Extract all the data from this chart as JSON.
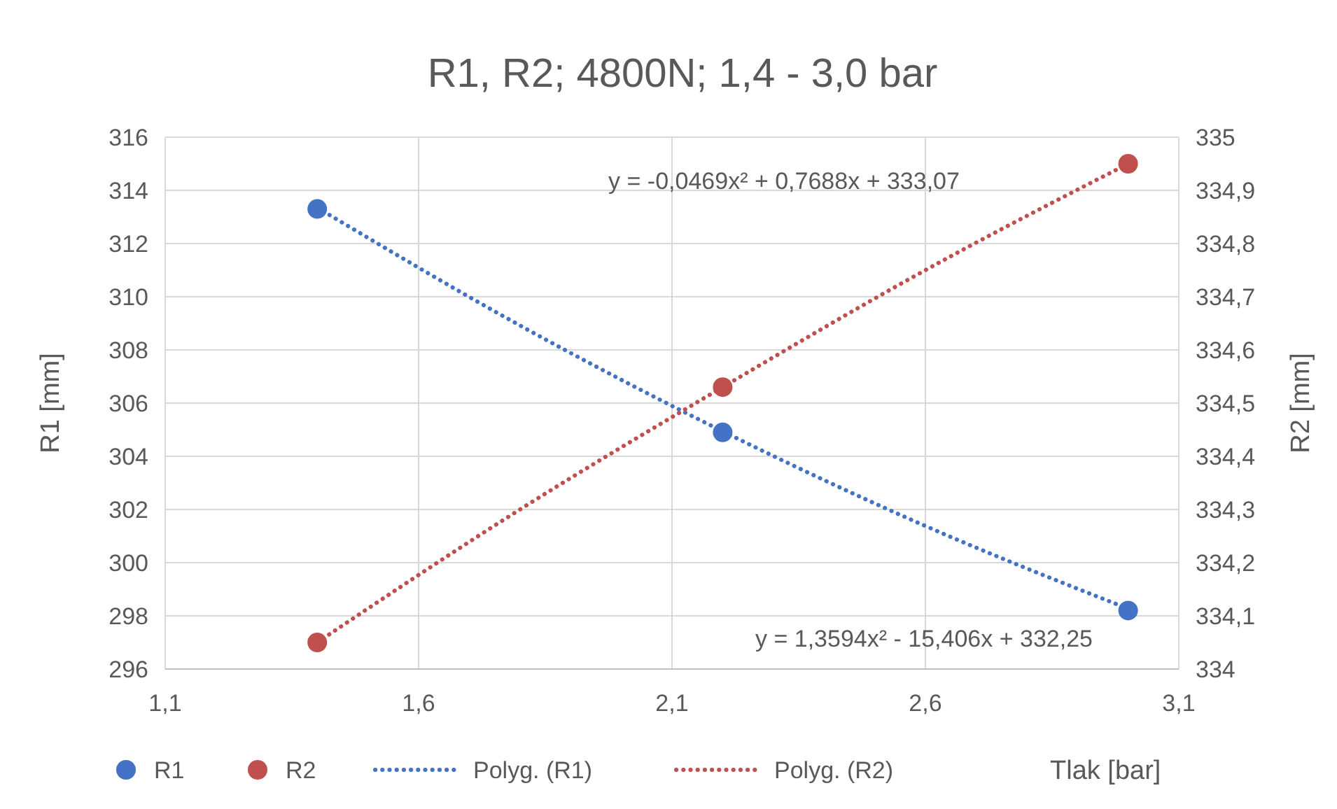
{
  "chart_data": {
    "type": "scatter",
    "title": "R1, R2; 4800N; 1,4 - 3,0 bar",
    "xlabel": "Tlak [bar]",
    "ylabel": "R1 [mm]",
    "y2label": "R2 [mm]",
    "x": [
      1.4,
      2.2,
      3.0
    ],
    "series": [
      {
        "name": "R1",
        "color": "#4472c4",
        "values": [
          313.3,
          304.9,
          298.2
        ]
      },
      {
        "name": "R2",
        "color": "#c0504d",
        "values": [
          334.05,
          334.53,
          334.95
        ],
        "axis": "y2"
      },
      {
        "name": "Polyg. (R1)",
        "type": "line",
        "color": "#4472c4",
        "x": [
          1.4,
          1.8,
          2.2,
          2.6,
          3.0
        ],
        "values": [
          313.35,
          308.92,
          304.94,
          301.38,
          298.27
        ],
        "line_style": "dotted",
        "marker": "none"
      },
      {
        "name": "Polyg. (R2)",
        "type": "line",
        "color": "#c0504d",
        "x": [
          1.4,
          1.8,
          2.2,
          2.6,
          3.0
        ],
        "values": [
          334.05,
          334.3,
          334.53,
          334.75,
          334.95
        ],
        "line_style": "dotted",
        "marker": "none",
        "axis": "y2"
      }
    ],
    "annotations": [
      "y = -0,0469x² + 0,7688x + 333,07",
      "y = 1,3594x² - 15,406x + 332,25"
    ],
    "xlim": [
      1.1,
      3.1
    ],
    "xticks": [
      {
        "value": 1.1,
        "label": "1,1"
      },
      {
        "value": 1.6,
        "label": "1,6"
      },
      {
        "value": 2.1,
        "label": "2,1"
      },
      {
        "value": 2.6,
        "label": "2,6"
      },
      {
        "value": 3.1,
        "label": "3,1"
      }
    ],
    "ylim": [
      296,
      316
    ],
    "yticks": [
      296,
      298,
      300,
      302,
      304,
      306,
      308,
      310,
      312,
      314,
      316
    ],
    "y2lim": [
      334,
      335
    ],
    "y2ticks": [
      334,
      {
        "value": 334.1,
        "label": "334,1"
      },
      {
        "value": 334.2,
        "label": "334,2"
      },
      {
        "value": 334.3,
        "label": "334,3"
      },
      {
        "value": 334.4,
        "label": "334,4"
      },
      {
        "value": 334.5,
        "label": "334,5"
      },
      {
        "value": 334.6,
        "label": "334,6"
      },
      {
        "value": 334.7,
        "label": "334,7"
      },
      {
        "value": 334.8,
        "label": "334,8"
      },
      {
        "value": 334.9,
        "label": "334,9"
      },
      335
    ],
    "grid": true,
    "legend": "bottom",
    "marker": "circle"
  }
}
